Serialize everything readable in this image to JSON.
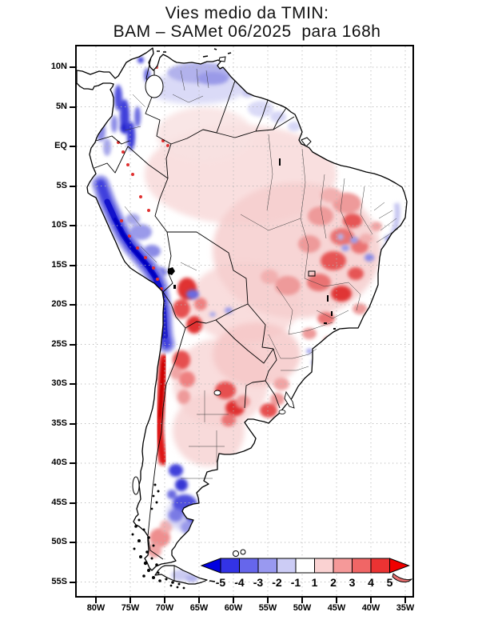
{
  "title": {
    "line1": "Vies medio da TMIN:",
    "line2": "BAM – SAMet 06/2025  para 168h"
  },
  "axes": {
    "lat_ticks": [
      {
        "label": "10N",
        "deg": 10
      },
      {
        "label": "5N",
        "deg": 5
      },
      {
        "label": "EQ",
        "deg": 0
      },
      {
        "label": "5S",
        "deg": -5
      },
      {
        "label": "10S",
        "deg": -10
      },
      {
        "label": "15S",
        "deg": -15
      },
      {
        "label": "20S",
        "deg": -20
      },
      {
        "label": "25S",
        "deg": -25
      },
      {
        "label": "30S",
        "deg": -30
      },
      {
        "label": "35S",
        "deg": -35
      },
      {
        "label": "40S",
        "deg": -40
      },
      {
        "label": "45S",
        "deg": -45
      },
      {
        "label": "50S",
        "deg": -50
      },
      {
        "label": "55S",
        "deg": -55
      }
    ],
    "lon_ticks": [
      {
        "label": "80W",
        "deg": -80
      },
      {
        "label": "75W",
        "deg": -75
      },
      {
        "label": "70W",
        "deg": -70
      },
      {
        "label": "65W",
        "deg": -65
      },
      {
        "label": "60W",
        "deg": -60
      },
      {
        "label": "55W",
        "deg": -55
      },
      {
        "label": "50W",
        "deg": -50
      },
      {
        "label": "45W",
        "deg": -45
      },
      {
        "label": "40W",
        "deg": -40
      },
      {
        "label": "35W",
        "deg": -35
      }
    ]
  },
  "colorbar": {
    "tick_labels": [
      "-5",
      "-4",
      "-3",
      "-2",
      "-1",
      "1",
      "2",
      "3",
      "4",
      "5"
    ],
    "cell_colors": [
      "#3333e6",
      "#6666eb",
      "#9999f0",
      "#ccccf5",
      "#ffffff",
      "#fad2d2",
      "#f59999",
      "#f06666",
      "#eb3333"
    ],
    "arrow_left_color": "#0000e0",
    "arrow_right_color": "#f00000"
  },
  "chart_data": {
    "type": "heatmap",
    "title": "Vies medio da TMIN: BAM – SAMet 06/2025 para 168h",
    "variable": "TMIN mean bias (BAM model minus SAMet), June 2025, 168 h forecast",
    "region": "South America",
    "lon_range_deg": [
      -82.8,
      -33.9
    ],
    "lat_range_deg": [
      -56.8,
      12.6
    ],
    "levels": [
      -5,
      -4,
      -3,
      -2,
      -1,
      1,
      2,
      3,
      4,
      5
    ],
    "legend_position": "bottom",
    "grid": "dotted graticule every 5 degrees",
    "notable_features": [
      "strong negative (blue) bias along Peru coast and Andes 5S-20S",
      "strong positive (red) bias along central Chile Andes 28S-38S",
      "positive bias patches over central-east Brazil, Altiplano and NE Argentina",
      "negative bias band over Patagonia 42S-48S and over central Venezuela",
      "weak positive bias over Amazon basin and Argentine pampas"
    ]
  }
}
